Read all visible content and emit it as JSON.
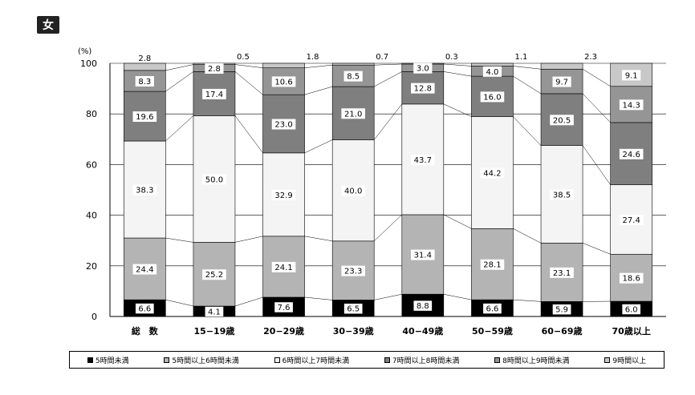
{
  "badge": "女",
  "chart_data": {
    "type": "bar",
    "stacked": true,
    "unit_label": "(%)",
    "ylim": [
      0,
      100
    ],
    "yticks": [
      0,
      20,
      40,
      60,
      80,
      100
    ],
    "grid": true,
    "legend_position": "bottom",
    "categories": [
      "総　数",
      "15−19歳",
      "20−29歳",
      "30−39歳",
      "40−49歳",
      "50−59歳",
      "60−69歳",
      "70歳以上"
    ],
    "series": [
      {
        "name": "5時間未満",
        "color": "#000000",
        "values": [
          6.6,
          4.1,
          7.6,
          6.5,
          8.8,
          6.6,
          5.9,
          6.0
        ]
      },
      {
        "name": "5時間以上6時間未満",
        "color": "#b4b4b4",
        "values": [
          24.4,
          25.2,
          24.1,
          23.3,
          31.4,
          28.1,
          23.1,
          18.6
        ]
      },
      {
        "name": "6時間以上7時間未満",
        "color": "#f4f4f4",
        "values": [
          38.3,
          50.0,
          32.9,
          40.0,
          43.7,
          44.2,
          38.5,
          27.4
        ]
      },
      {
        "name": "7時間以上8時間未満",
        "color": "#7f7f7f",
        "values": [
          19.6,
          17.4,
          23.0,
          21.0,
          12.8,
          16.0,
          20.5,
          24.6
        ]
      },
      {
        "name": "8時間以上9時間未満",
        "color": "#959595",
        "values": [
          8.3,
          2.8,
          10.6,
          8.5,
          3.0,
          4.0,
          9.7,
          14.3
        ]
      },
      {
        "name": "9時間以上",
        "color": "#c8c8c8",
        "values": [
          2.8,
          0.5,
          1.8,
          0.7,
          0.3,
          1.1,
          2.3,
          9.1
        ]
      }
    ],
    "value_labels": [
      [
        "6.6",
        "24.4",
        "38.3",
        "19.6",
        "8.3",
        "2.8"
      ],
      [
        "4.1",
        "25.2",
        "50.0",
        "17.4",
        "2.8",
        "0.5"
      ],
      [
        "7.6",
        "24.1",
        "32.9",
        "23.0",
        "10.6",
        "1.8"
      ],
      [
        "6.5",
        "23.3",
        "40.0",
        "21.0",
        "8.5",
        "0.7"
      ],
      [
        "8.8",
        "31.4",
        "43.7",
        "12.8",
        "3.0",
        "0.3"
      ],
      [
        "6.6",
        "28.1",
        "44.2",
        "16.0",
        "4.0",
        "1.1"
      ],
      [
        "5.9",
        "23.1",
        "38.5",
        "20.5",
        "9.7",
        "2.3"
      ],
      [
        "6.0",
        "18.6",
        "27.4",
        "24.6",
        "14.3",
        "9.1"
      ]
    ]
  }
}
